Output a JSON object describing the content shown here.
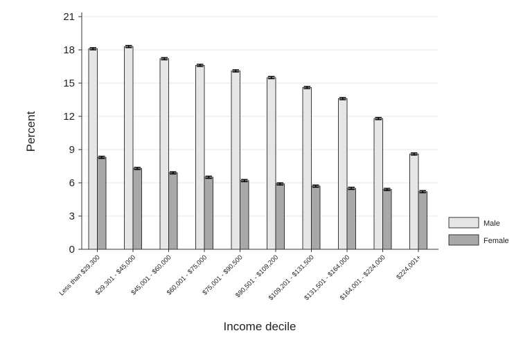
{
  "chart_data": {
    "type": "bar",
    "title": "",
    "xlabel": "Income decile",
    "ylabel": "Percent",
    "ylim": [
      0,
      21
    ],
    "yticks": [
      0,
      3,
      6,
      9,
      12,
      15,
      18,
      21
    ],
    "grid": true,
    "legend_position": "right",
    "error_bars": true,
    "categories": [
      "Less than $29,300",
      "$29,301 - $45,000",
      "$45,001 - $60,000",
      "$60,001 - $75,000",
      "$75,001 - $90,500",
      "$90,501 - $109,200",
      "$109,201 - $131,500",
      "$131,501 - $164,000",
      "$164,001 - $224,000",
      "$224,001+"
    ],
    "series": [
      {
        "name": "Male",
        "color": "#e6e6e6",
        "values": [
          18.1,
          18.3,
          17.2,
          16.6,
          16.1,
          15.5,
          14.6,
          13.6,
          11.8,
          8.6
        ]
      },
      {
        "name": "Female",
        "color": "#a8a8a8",
        "values": [
          8.3,
          7.3,
          6.9,
          6.5,
          6.2,
          5.9,
          5.7,
          5.5,
          5.4,
          5.2
        ]
      }
    ]
  }
}
